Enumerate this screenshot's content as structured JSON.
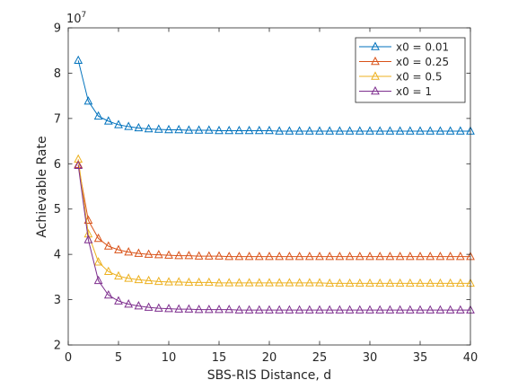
{
  "chart_data": {
    "type": "line",
    "title": "",
    "xlabel": "SBS-RIS Distance, d",
    "ylabel": "Achievable Rate",
    "y_exponent": "10",
    "y_exponent_power": "7",
    "xlim": [
      0,
      40
    ],
    "ylim": [
      2,
      9
    ],
    "xticks": [
      "0",
      "5",
      "10",
      "15",
      "20",
      "25",
      "30",
      "35",
      "40"
    ],
    "yticks": [
      "2",
      "3",
      "4",
      "5",
      "6",
      "7",
      "8",
      "9"
    ],
    "grid": false,
    "legend_position": "top-right",
    "marker": "triangle",
    "x": [
      1,
      2,
      3,
      4,
      5,
      6,
      7,
      8,
      9,
      10,
      11,
      12,
      13,
      14,
      15,
      16,
      17,
      18,
      19,
      20,
      21,
      22,
      23,
      24,
      25,
      26,
      27,
      28,
      29,
      30,
      31,
      32,
      33,
      34,
      35,
      36,
      37,
      38,
      39,
      40
    ],
    "series": [
      {
        "name": "x0 = 0.01",
        "color": "#0072BD",
        "values": [
          8.28,
          7.38,
          7.05,
          6.94,
          6.86,
          6.82,
          6.79,
          6.77,
          6.76,
          6.75,
          6.75,
          6.74,
          6.74,
          6.74,
          6.73,
          6.73,
          6.73,
          6.73,
          6.73,
          6.73,
          6.72,
          6.72,
          6.72,
          6.72,
          6.72,
          6.72,
          6.72,
          6.72,
          6.72,
          6.72,
          6.72,
          6.72,
          6.72,
          6.72,
          6.72,
          6.72,
          6.72,
          6.72,
          6.72,
          6.72
        ]
      },
      {
        "name": "x0 = 0.25",
        "color": "#D95319",
        "values": [
          5.98,
          4.75,
          4.35,
          4.18,
          4.1,
          4.05,
          4.02,
          4.0,
          3.99,
          3.98,
          3.97,
          3.97,
          3.96,
          3.96,
          3.96,
          3.95,
          3.95,
          3.95,
          3.95,
          3.95,
          3.95,
          3.95,
          3.95,
          3.95,
          3.95,
          3.95,
          3.95,
          3.95,
          3.95,
          3.95,
          3.95,
          3.95,
          3.95,
          3.95,
          3.95,
          3.95,
          3.95,
          3.95,
          3.95,
          3.95
        ]
      },
      {
        "name": "x0 = 0.5",
        "color": "#EDB120",
        "values": [
          6.1,
          4.45,
          3.83,
          3.62,
          3.52,
          3.47,
          3.44,
          3.42,
          3.4,
          3.39,
          3.39,
          3.38,
          3.38,
          3.38,
          3.37,
          3.37,
          3.37,
          3.37,
          3.37,
          3.37,
          3.37,
          3.37,
          3.37,
          3.37,
          3.37,
          3.36,
          3.36,
          3.36,
          3.36,
          3.36,
          3.36,
          3.36,
          3.36,
          3.36,
          3.36,
          3.36,
          3.36,
          3.36,
          3.36,
          3.36
        ]
      },
      {
        "name": "x0 = 1",
        "color": "#7E2F8E",
        "values": [
          5.96,
          4.32,
          3.42,
          3.1,
          2.97,
          2.9,
          2.86,
          2.83,
          2.81,
          2.8,
          2.79,
          2.79,
          2.78,
          2.78,
          2.78,
          2.78,
          2.77,
          2.77,
          2.77,
          2.77,
          2.77,
          2.77,
          2.77,
          2.77,
          2.77,
          2.77,
          2.77,
          2.77,
          2.77,
          2.77,
          2.77,
          2.77,
          2.77,
          2.77,
          2.77,
          2.77,
          2.77,
          2.77,
          2.77,
          2.77
        ]
      }
    ]
  }
}
